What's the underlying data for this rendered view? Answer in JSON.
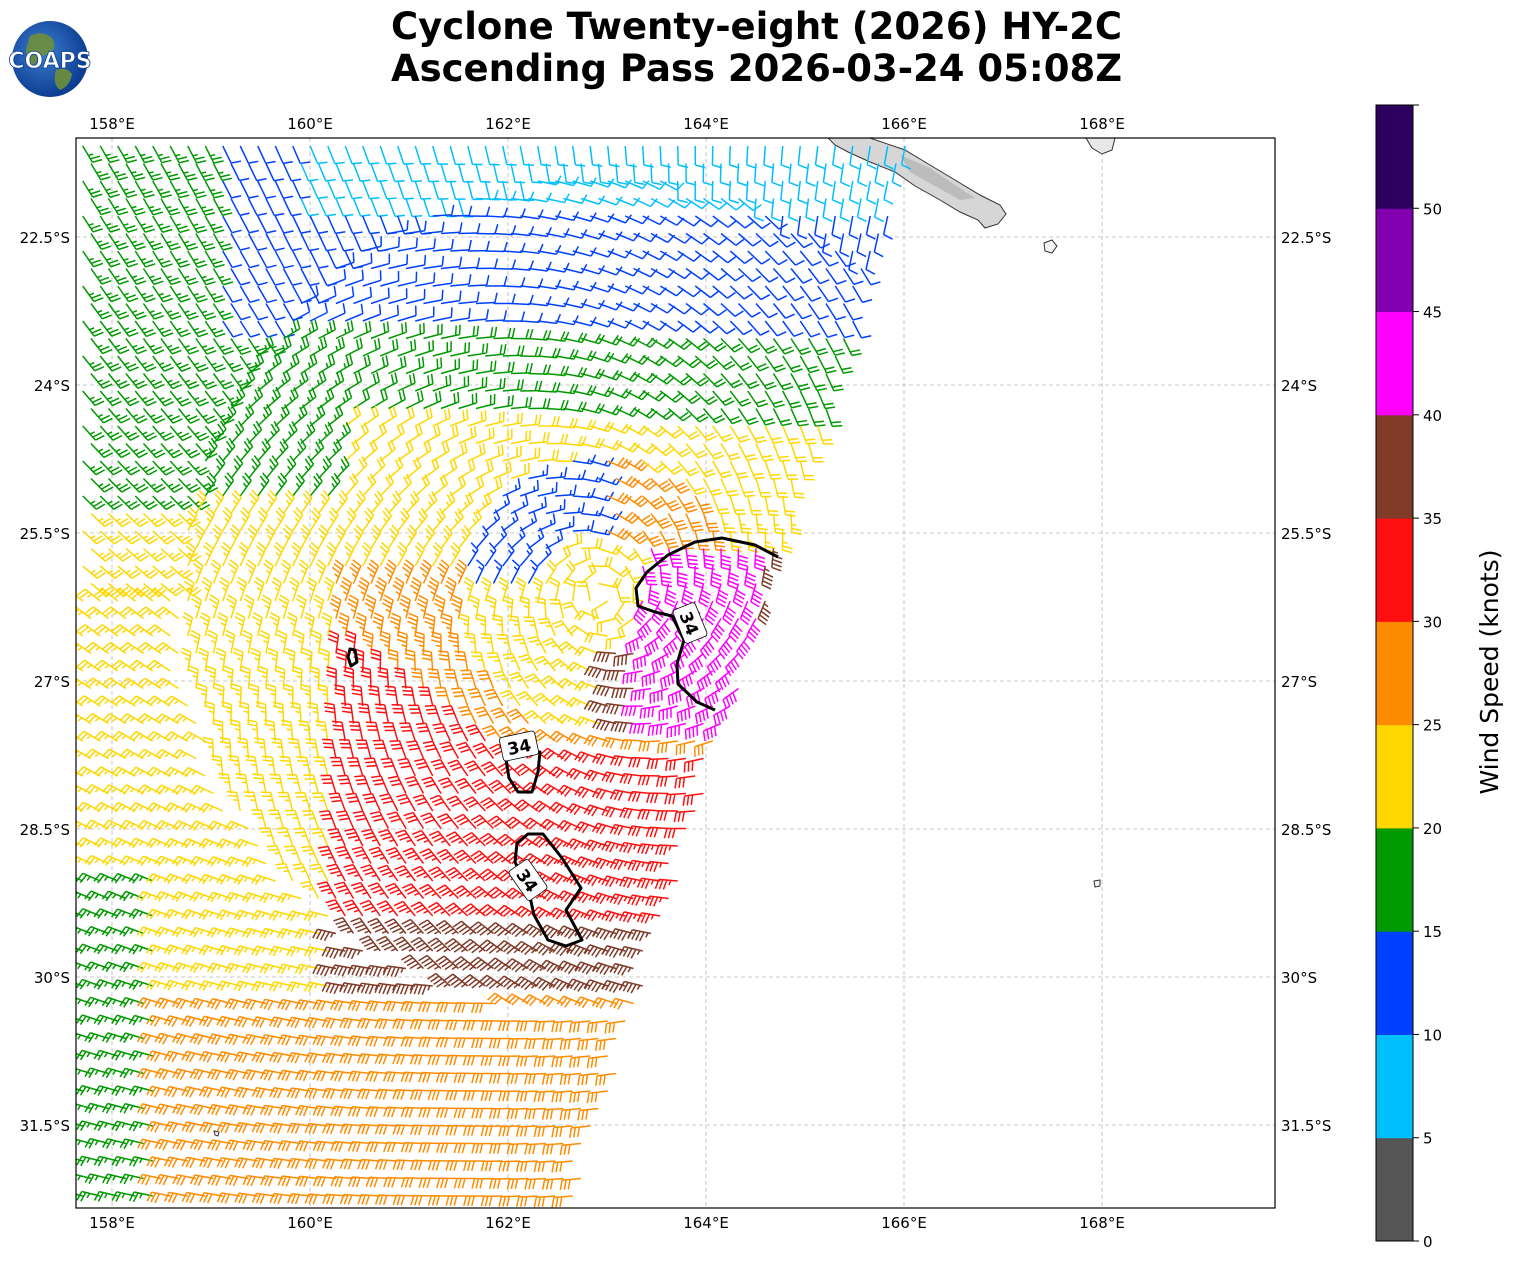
{
  "title": {
    "line1": "Cyclone Twenty-eight (2026) HY-2C",
    "line2": "Ascending Pass 2026-03-24 05:08Z"
  },
  "logo": {
    "text": "COAPS"
  },
  "map": {
    "lon_ticks": [
      "158°E",
      "160°E",
      "162°E",
      "164°E",
      "166°E",
      "168°E"
    ],
    "lat_ticks": [
      "22.5°S",
      "24°S",
      "25.5°S",
      "27°S",
      "28.5°S",
      "30°S",
      "31.5°S"
    ],
    "contour_labels": [
      "34",
      "34",
      "34"
    ],
    "land_color": "#c8c8c8"
  },
  "colorbar": {
    "label": "Wind Speed (knots)",
    "ticks": [
      "0",
      "5",
      "10",
      "15",
      "20",
      "25",
      "30",
      "35",
      "40",
      "45",
      "50"
    ],
    "colors": [
      "#555555",
      "#00bfff",
      "#0040ff",
      "#009900",
      "#ffd700",
      "#ff8c00",
      "#ff1010",
      "#7f3a28",
      "#ff00ff",
      "#8000b0",
      "#2d0060"
    ]
  }
}
